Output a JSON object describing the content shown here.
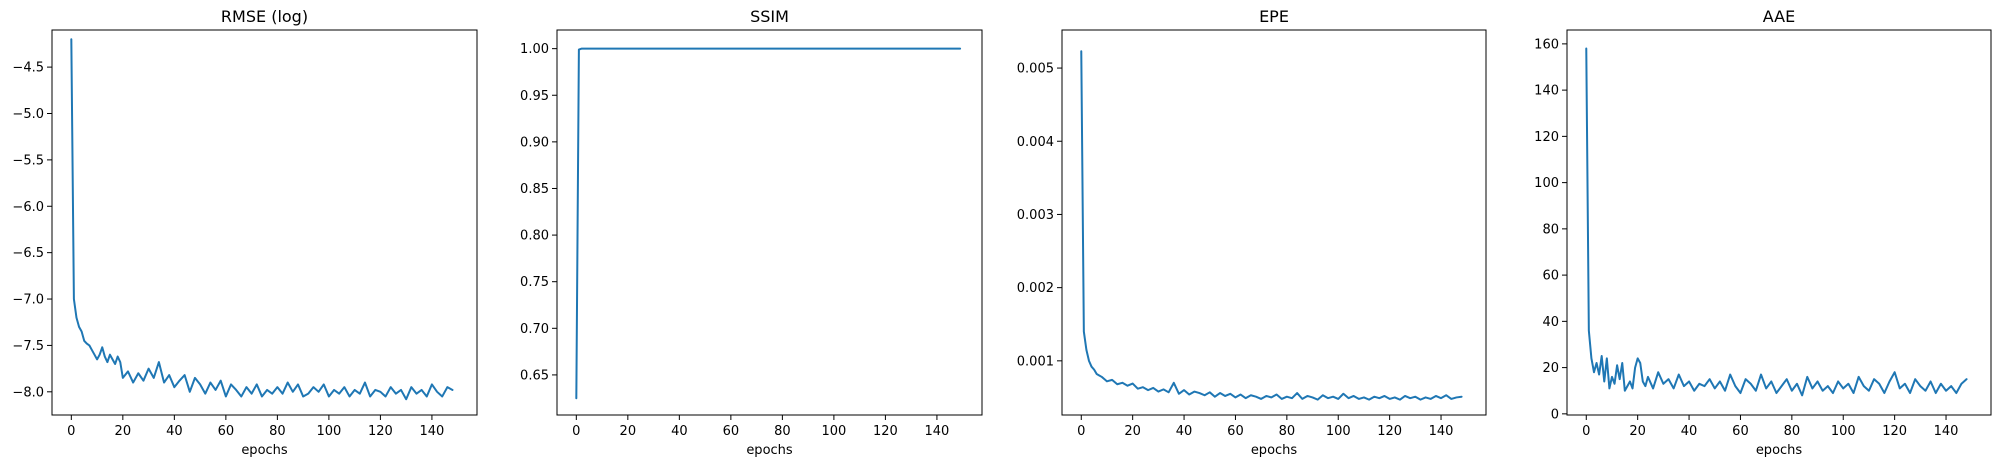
{
  "figure": {
    "series_color": "#1f77b4"
  },
  "chart_data": [
    {
      "type": "line",
      "title": "RMSE (log)",
      "xlabel": "epochs",
      "ylabel": "",
      "xlim": [
        -7.5,
        157.5
      ],
      "ylim": [
        -8.25,
        -4.1
      ],
      "xticks": [
        0,
        20,
        40,
        60,
        80,
        100,
        120,
        140
      ],
      "yticks": [
        -8.0,
        -7.5,
        -7.0,
        -6.5,
        -6.0,
        -5.5,
        -5.0,
        -4.5
      ],
      "ytick_labels": [
        "−8.0",
        "−7.5",
        "−7.0",
        "−6.5",
        "−6.0",
        "−5.5",
        "−5.0",
        "−4.5"
      ],
      "grid": false,
      "series": [
        {
          "x": [
            0,
            1,
            2,
            3,
            4,
            5,
            6,
            7,
            8,
            9,
            10,
            11,
            12,
            13,
            14,
            15,
            16,
            17,
            18,
            19,
            20,
            22,
            24,
            26,
            28,
            30,
            32,
            34,
            36,
            38,
            40,
            42,
            44,
            46,
            48,
            50,
            52,
            54,
            56,
            58,
            60,
            62,
            64,
            66,
            68,
            70,
            72,
            74,
            76,
            78,
            80,
            82,
            84,
            86,
            88,
            90,
            92,
            94,
            96,
            98,
            100,
            102,
            104,
            106,
            108,
            110,
            112,
            114,
            116,
            118,
            120,
            122,
            124,
            126,
            128,
            130,
            132,
            134,
            136,
            138,
            140,
            142,
            144,
            146,
            148
          ],
          "values": [
            -4.2,
            -7.0,
            -7.2,
            -7.3,
            -7.35,
            -7.45,
            -7.48,
            -7.5,
            -7.55,
            -7.6,
            -7.65,
            -7.6,
            -7.52,
            -7.62,
            -7.68,
            -7.6,
            -7.65,
            -7.7,
            -7.62,
            -7.68,
            -7.85,
            -7.78,
            -7.9,
            -7.8,
            -7.88,
            -7.75,
            -7.85,
            -7.68,
            -7.9,
            -7.82,
            -7.95,
            -7.88,
            -7.82,
            -8.0,
            -7.85,
            -7.92,
            -8.02,
            -7.9,
            -7.98,
            -7.88,
            -8.05,
            -7.92,
            -7.98,
            -8.05,
            -7.95,
            -8.02,
            -7.92,
            -8.05,
            -7.98,
            -8.02,
            -7.95,
            -8.02,
            -7.9,
            -8.0,
            -7.92,
            -8.05,
            -8.02,
            -7.95,
            -8.0,
            -7.92,
            -8.05,
            -7.98,
            -8.02,
            -7.95,
            -8.05,
            -7.98,
            -8.02,
            -7.9,
            -8.05,
            -7.98,
            -8.0,
            -8.05,
            -7.95,
            -8.02,
            -7.98,
            -8.08,
            -7.95,
            -8.02,
            -7.98,
            -8.05,
            -7.92,
            -8.0,
            -8.05,
            -7.95,
            -7.98
          ]
        }
      ]
    },
    {
      "type": "line",
      "title": "SSIM",
      "xlabel": "epochs",
      "ylabel": "",
      "xlim": [
        -7.5,
        157.5
      ],
      "ylim": [
        0.607,
        1.02
      ],
      "xticks": [
        0,
        20,
        40,
        60,
        80,
        100,
        120,
        140
      ],
      "yticks": [
        0.65,
        0.7,
        0.75,
        0.8,
        0.85,
        0.9,
        0.95,
        1.0
      ],
      "ytick_labels": [
        "0.65",
        "0.70",
        "0.75",
        "0.80",
        "0.85",
        "0.90",
        "0.95",
        "1.00"
      ],
      "grid": false,
      "series": [
        {
          "x": [
            0,
            1,
            2,
            149
          ],
          "values": [
            0.625,
            0.999,
            1.0,
            1.0
          ]
        }
      ]
    },
    {
      "type": "line",
      "title": "EPE",
      "xlabel": "epochs",
      "ylabel": "",
      "xlim": [
        -7.5,
        157.5
      ],
      "ylim": [
        0.00026,
        0.00552
      ],
      "xticks": [
        0,
        20,
        40,
        60,
        80,
        100,
        120,
        140
      ],
      "yticks": [
        0.001,
        0.002,
        0.003,
        0.004,
        0.005
      ],
      "ytick_labels": [
        "0.001",
        "0.002",
        "0.003",
        "0.004",
        "0.005"
      ],
      "grid": false,
      "series": [
        {
          "x": [
            0,
            1,
            2,
            3,
            4,
            5,
            6,
            7,
            8,
            9,
            10,
            12,
            14,
            16,
            18,
            20,
            22,
            24,
            26,
            28,
            30,
            32,
            34,
            36,
            38,
            40,
            42,
            44,
            46,
            48,
            50,
            52,
            54,
            56,
            58,
            60,
            62,
            64,
            66,
            68,
            70,
            72,
            74,
            76,
            78,
            80,
            82,
            84,
            86,
            88,
            90,
            92,
            94,
            96,
            98,
            100,
            102,
            104,
            106,
            108,
            110,
            112,
            114,
            116,
            118,
            120,
            122,
            124,
            126,
            128,
            130,
            132,
            134,
            136,
            138,
            140,
            142,
            144,
            146,
            148
          ],
          "values": [
            0.00523,
            0.0014,
            0.00115,
            0.001,
            0.00092,
            0.00088,
            0.00082,
            0.0008,
            0.00078,
            0.00075,
            0.00072,
            0.00074,
            0.00068,
            0.0007,
            0.00066,
            0.00069,
            0.00062,
            0.00064,
            0.0006,
            0.00063,
            0.00058,
            0.00061,
            0.00057,
            0.0007,
            0.00055,
            0.0006,
            0.00054,
            0.00058,
            0.00056,
            0.00053,
            0.00057,
            0.00051,
            0.00056,
            0.00052,
            0.00055,
            0.0005,
            0.00054,
            0.00049,
            0.00053,
            0.00051,
            0.00048,
            0.00052,
            0.0005,
            0.00054,
            0.00048,
            0.00051,
            0.00049,
            0.00056,
            0.00048,
            0.00052,
            0.0005,
            0.00047,
            0.00053,
            0.00049,
            0.00051,
            0.00048,
            0.00055,
            0.00049,
            0.00052,
            0.00048,
            0.0005,
            0.00047,
            0.00051,
            0.00049,
            0.00052,
            0.00048,
            0.0005,
            0.00047,
            0.00052,
            0.00049,
            0.00051,
            0.00047,
            0.0005,
            0.00048,
            0.00052,
            0.00049,
            0.00053,
            0.00048,
            0.0005,
            0.00051
          ]
        }
      ]
    },
    {
      "type": "line",
      "title": "AAE",
      "xlabel": "epochs",
      "ylabel": "",
      "xlim": [
        -7.5,
        157.5
      ],
      "ylim": [
        -0.5,
        166
      ],
      "xticks": [
        0,
        20,
        40,
        60,
        80,
        100,
        120,
        140
      ],
      "yticks": [
        0,
        20,
        40,
        60,
        80,
        100,
        120,
        140,
        160
      ],
      "ytick_labels": [
        "0",
        "20",
        "40",
        "60",
        "80",
        "100",
        "120",
        "140",
        "160"
      ],
      "grid": false,
      "series": [
        {
          "x": [
            0,
            1,
            2,
            3,
            4,
            5,
            6,
            7,
            8,
            9,
            10,
            11,
            12,
            13,
            14,
            15,
            16,
            17,
            18,
            19,
            20,
            21,
            22,
            23,
            24,
            26,
            28,
            30,
            32,
            34,
            36,
            38,
            40,
            42,
            44,
            46,
            48,
            50,
            52,
            54,
            56,
            58,
            60,
            62,
            64,
            66,
            68,
            70,
            72,
            74,
            76,
            78,
            80,
            82,
            84,
            86,
            88,
            90,
            92,
            94,
            96,
            98,
            100,
            102,
            104,
            106,
            108,
            110,
            112,
            114,
            116,
            118,
            120,
            122,
            124,
            126,
            128,
            130,
            132,
            134,
            136,
            138,
            140,
            142,
            144,
            146,
            148
          ],
          "values": [
            158,
            36,
            24,
            18,
            22,
            17,
            25,
            14,
            24,
            11,
            16,
            13,
            21,
            15,
            22,
            10,
            12,
            14,
            11,
            20,
            24,
            22,
            14,
            12,
            16,
            11,
            18,
            13,
            15,
            11,
            17,
            12,
            14,
            10,
            13,
            12,
            15,
            11,
            14,
            10,
            17,
            12,
            9,
            15,
            13,
            10,
            17,
            11,
            14,
            9,
            12,
            15,
            10,
            13,
            8,
            16,
            11,
            14,
            10,
            12,
            9,
            14,
            11,
            13,
            9,
            16,
            12,
            10,
            15,
            13,
            9,
            14,
            18,
            11,
            13,
            9,
            15,
            12,
            10,
            14,
            9,
            13,
            10,
            12,
            9,
            13,
            15
          ]
        }
      ]
    }
  ]
}
